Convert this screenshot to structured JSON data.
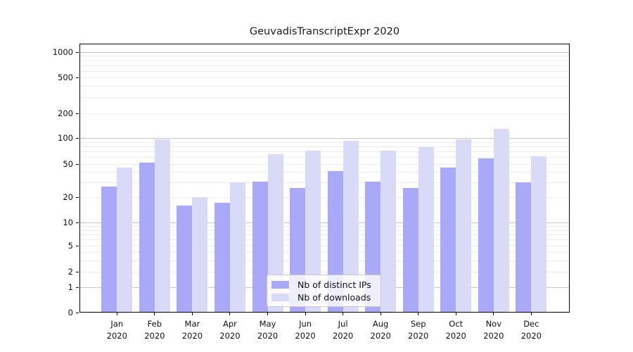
{
  "title": "GeuvadisTranscriptExpr 2020",
  "colors": {
    "ips_bar": "#a9a9f7",
    "downloads_bar": "#d9d9f8",
    "grid_major": "#c6c6c6",
    "grid_minor": "#ececec",
    "spine": "#000000",
    "legend_border": "#c9c9c9"
  },
  "chart_data": {
    "type": "bar",
    "title": "GeuvadisTranscriptExpr 2020",
    "categories": [
      "Jan 2020",
      "Feb 2020",
      "Mar 2020",
      "Apr 2020",
      "May 2020",
      "Jun 2020",
      "Jul 2020",
      "Aug 2020",
      "Sep 2020",
      "Oct 2020",
      "Nov 2020",
      "Dec 2020"
    ],
    "series": [
      {
        "name": "Nb of distinct IPs",
        "color": "#a9a9f7",
        "values": [
          27,
          52,
          16,
          17,
          31,
          26,
          41,
          31,
          26,
          45,
          58,
          30
        ]
      },
      {
        "name": "Nb of downloads",
        "color": "#d9d9f8",
        "values": [
          45,
          97,
          20,
          30,
          65,
          72,
          93,
          72,
          78,
          97,
          130,
          61
        ]
      }
    ],
    "xlabel": "",
    "ylabel": "",
    "yscale": "symlog",
    "yticks": [
      0,
      1,
      2,
      5,
      10,
      20,
      50,
      100,
      200,
      500,
      1000
    ],
    "ylim": [
      0,
      1300
    ],
    "grid": "horizontal",
    "legend_position": "lower center"
  },
  "legend": {
    "items": [
      {
        "label": "Nb of distinct IPs",
        "swatch": "ips-swatch"
      },
      {
        "label": "Nb of downloads",
        "swatch": "downloads-swatch"
      }
    ]
  }
}
